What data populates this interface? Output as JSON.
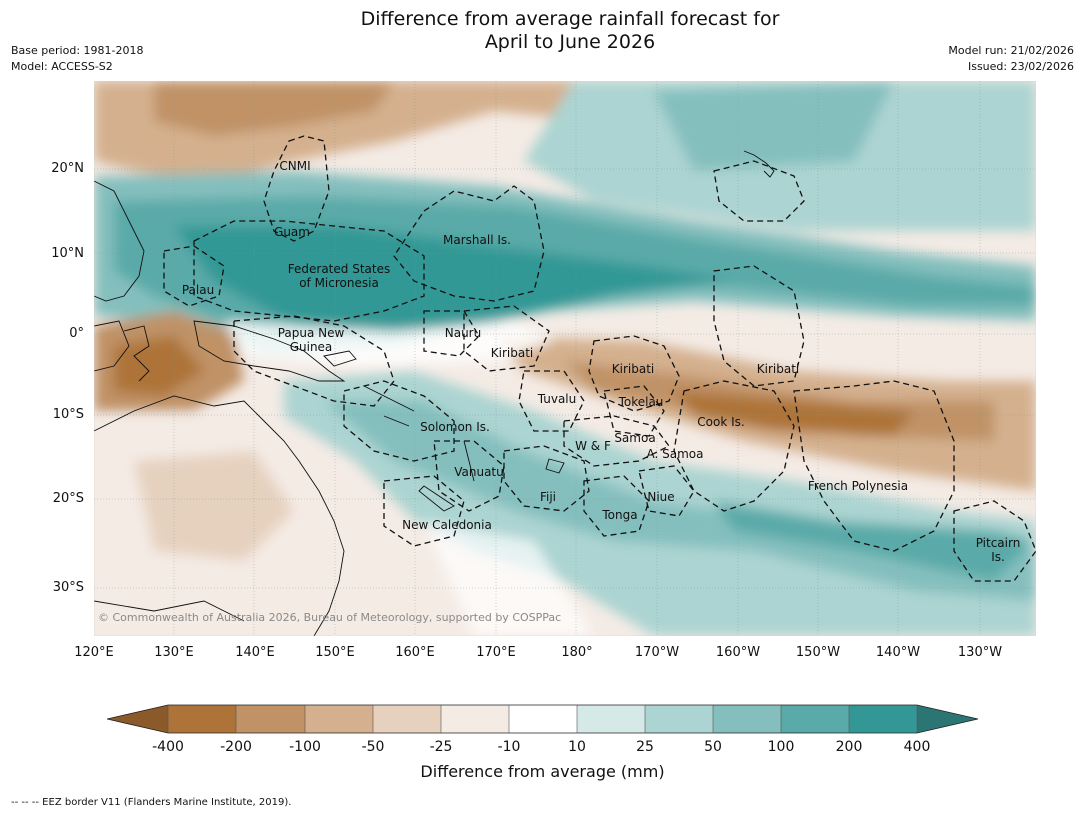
{
  "header": {
    "title_line1": "Difference from average rainfall forecast for",
    "title_line2": "April to June 2026",
    "base_period": "Base period: 1981-2018",
    "model": "Model: ACCESS-S2",
    "model_run": "Model run: 21/02/2026",
    "issued": "Issued: 23/02/2026"
  },
  "axes": {
    "lat_labels": [
      "20°N",
      "10°N",
      "0°",
      "10°S",
      "20°S",
      "30°S"
    ],
    "lon_labels": [
      "120°E",
      "130°E",
      "140°E",
      "150°E",
      "160°E",
      "170°E",
      "180°",
      "170°W",
      "160°W",
      "150°W",
      "140°W",
      "130°W"
    ]
  },
  "map": {
    "places": {
      "cnmi": "CNMI",
      "guam": "Guam",
      "marshall": "Marshall Is.",
      "fsm_line1": "Federated States",
      "fsm_line2": "of Micronesia",
      "palau": "Palau",
      "png_line1": "Papua New",
      "png_line2": "Guinea",
      "nauru": "Nauru",
      "kiribati_west": "Kiribati",
      "kiribati_central": "Kiribati",
      "kiribati_east": "Kiribati",
      "tuvalu": "Tuvalu",
      "tokelau": "Tokelau",
      "cook": "Cook Is.",
      "solomon": "Solomon Is.",
      "samoa": "Samoa",
      "wallis": "W & F",
      "american_samoa": "A. Samoa",
      "vanuatu": "Vanuatu",
      "fiji": "Fiji",
      "niue": "Niue",
      "tonga": "Tonga",
      "french_polynesia": "French Polynesia",
      "new_caledonia": "New Caledonia",
      "pitcairn_line1": "Pitcairn",
      "pitcairn_line2": "Is."
    },
    "copyright": "© Commonwealth of Australia 2026, Bureau of Meteorology, supported by COSPPac"
  },
  "colorbar": {
    "ticks": [
      "-400",
      "-200",
      "-100",
      "-50",
      "-25",
      "-10",
      "10",
      "25",
      "50",
      "100",
      "200",
      "400"
    ],
    "colors": {
      "below_min": "#8c5a2a",
      "c1": "#ad7339",
      "c2": "#c09266",
      "c3": "#d4b08e",
      "c4": "#e6d1bf",
      "c5": "#f4ebe5",
      "c6": "#ffffff",
      "c7": "#d5e9e7",
      "c8": "#acd4d2",
      "c9": "#84bfbe",
      "c10": "#5aaaa9",
      "c11": "#339895",
      "above_max": "#2b7574"
    },
    "label": "Difference from average (mm)"
  },
  "footnote": "--  --  -- EEZ border V11 (Flanders Marine Institute, 2019)."
}
